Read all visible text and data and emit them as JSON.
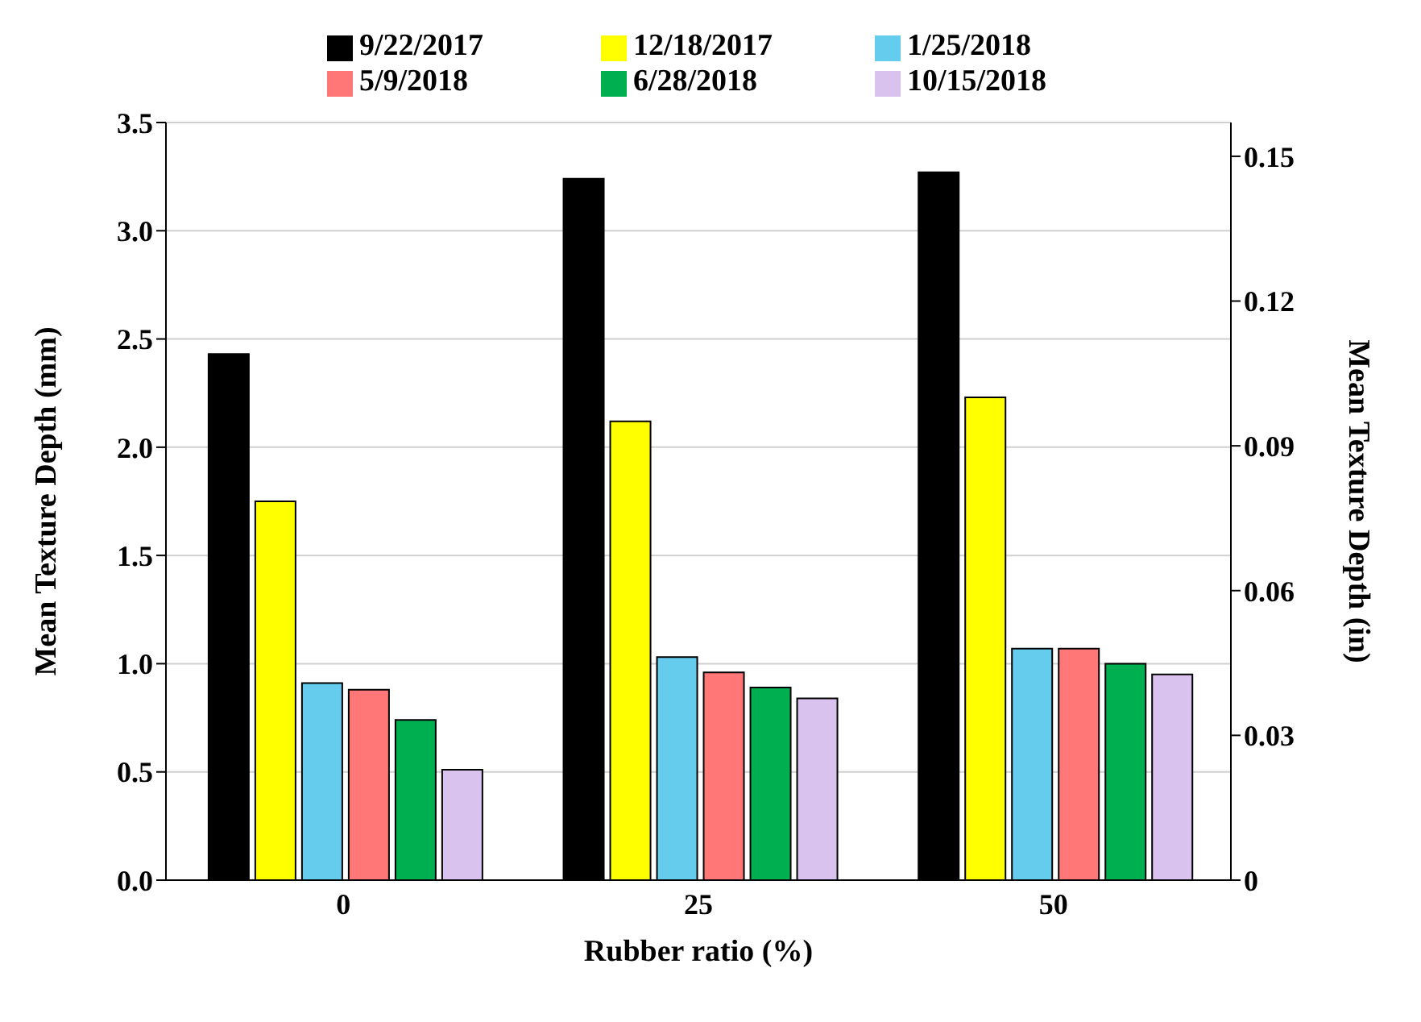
{
  "chart_data": {
    "type": "bar",
    "xlabel": "Rubber ratio (%)",
    "ylabel": "Mean Texture Depth (mm)",
    "y2label": "Mean Texture Depth (in)",
    "categories": [
      "0",
      "25",
      "50"
    ],
    "series": [
      {
        "name": "9/22/2017",
        "color": "#000000",
        "values": [
          2.43,
          3.24,
          3.27
        ]
      },
      {
        "name": "12/18/2017",
        "color": "#ffff00",
        "values": [
          1.75,
          2.12,
          2.23
        ]
      },
      {
        "name": "1/25/2018",
        "color": "#66ccee",
        "values": [
          0.91,
          1.03,
          1.07
        ]
      },
      {
        "name": "5/9/2018",
        "color": "#ff7777",
        "values": [
          0.88,
          0.96,
          1.07
        ]
      },
      {
        "name": "6/28/2018",
        "color": "#00b050",
        "values": [
          0.74,
          0.89,
          1.0
        ]
      },
      {
        "name": "10/15/2018",
        "color": "#d9c3ee",
        "values": [
          0.51,
          0.84,
          0.95
        ]
      }
    ],
    "ylim": [
      0,
      3.5
    ],
    "yticks": [
      {
        "value": 0,
        "label": "0.0"
      },
      {
        "value": 0.5,
        "label": "0.5"
      },
      {
        "value": 1,
        "label": "1.0"
      },
      {
        "value": 1.5,
        "label": "1.5"
      },
      {
        "value": 2,
        "label": "2.0"
      },
      {
        "value": 2.5,
        "label": "2.5"
      },
      {
        "value": 3,
        "label": "3.0"
      },
      {
        "value": 3.5,
        "label": "3.5"
      }
    ],
    "y2lim": [
      0,
      0.157
    ],
    "y2ticks": [
      0,
      0.03,
      0.06,
      0.09,
      0.12,
      0.15
    ],
    "grid": "y",
    "legend": "top"
  }
}
